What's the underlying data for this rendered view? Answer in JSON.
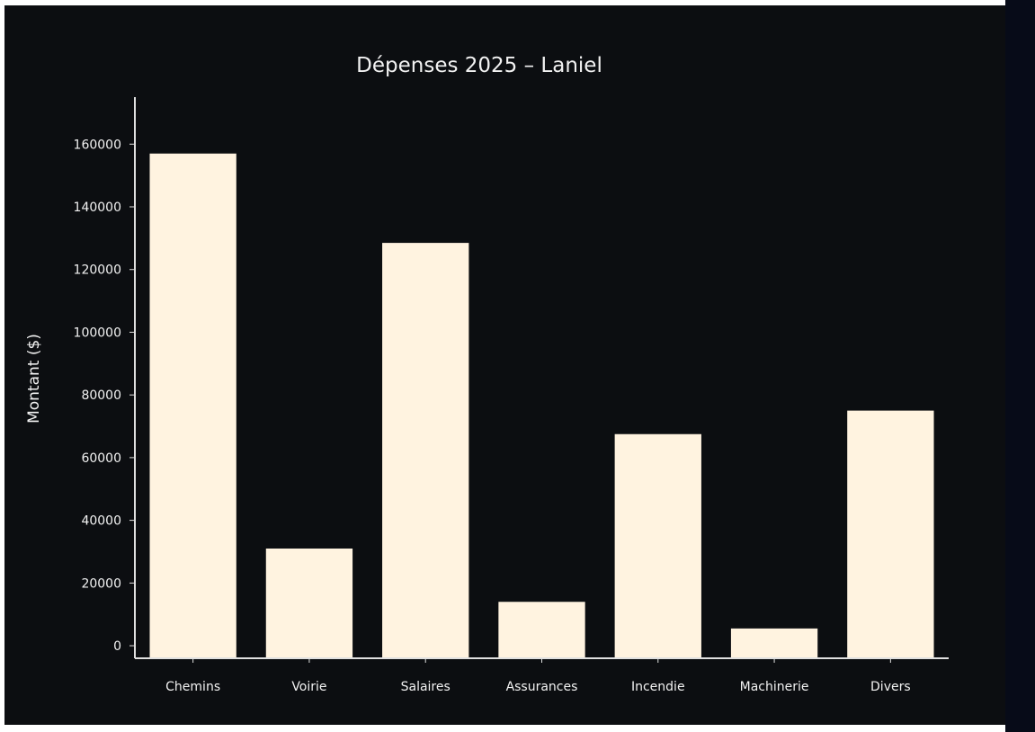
{
  "colors": {
    "background": "#0c0e11",
    "bar": "#fff3e0",
    "axis": "#e0e0e0",
    "text": "#f2f2f2"
  },
  "chart_data": {
    "type": "bar",
    "title": "Dépenses 2025 – Laniel",
    "xlabel": "",
    "ylabel": "Montant ($)",
    "categories": [
      "Chemins",
      "Voirie",
      "Salaires",
      "Assurances",
      "Incendie",
      "Machinerie",
      "Divers"
    ],
    "values": [
      157000,
      31000,
      128500,
      14000,
      67500,
      5500,
      75000
    ],
    "ylim": [
      -4000,
      175000
    ],
    "yticks": [
      0,
      20000,
      40000,
      60000,
      80000,
      100000,
      120000,
      140000,
      160000
    ],
    "ytick_labels": [
      "0",
      "20000",
      "40000",
      "60000",
      "80000",
      "100000",
      "120000",
      "140000",
      "160000"
    ],
    "grid": false,
    "legend": "none"
  }
}
